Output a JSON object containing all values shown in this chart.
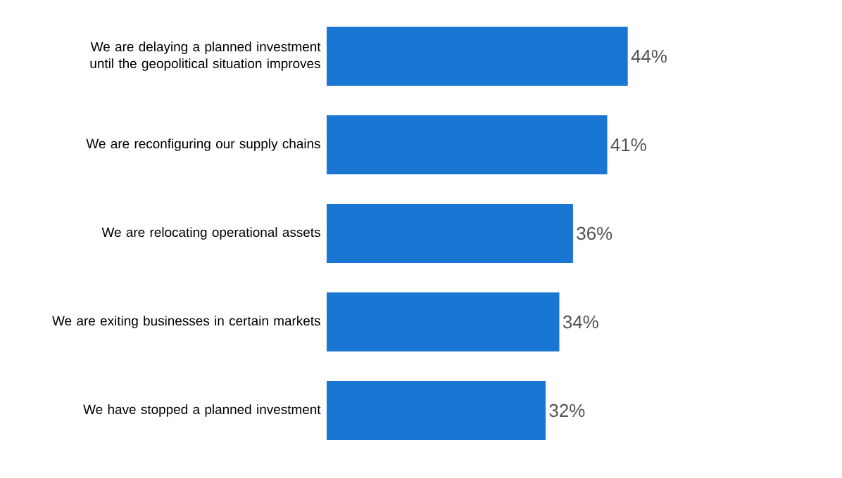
{
  "chart_data": {
    "type": "bar",
    "orientation": "horizontal",
    "categories": [
      "We are delaying a planned investment until the geopolitical situation improves",
      "We are reconfiguring our supply chains",
      "We are relocating operational assets",
      "We are exiting businesses in certain markets",
      "We have stopped a planned investment"
    ],
    "values": [
      44,
      41,
      36,
      34,
      32
    ],
    "value_labels": [
      "44%",
      "41%",
      "36%",
      "34%",
      "32%"
    ],
    "color": "#1976d2"
  }
}
